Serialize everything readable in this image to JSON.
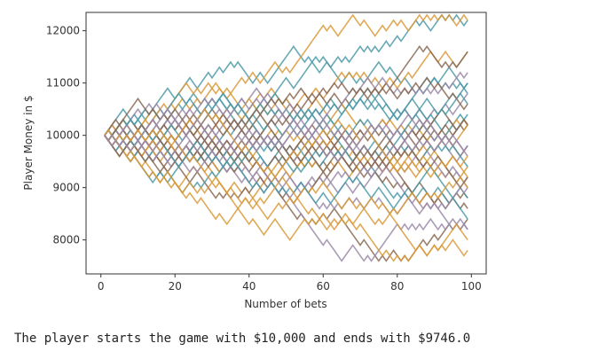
{
  "chart_data": {
    "type": "line",
    "title": "",
    "xlabel": "Number of bets",
    "ylabel": "Player Money in $",
    "xlim": [
      -4,
      104
    ],
    "ylim": [
      7350,
      12350
    ],
    "x_ticks": [
      0,
      20,
      40,
      60,
      80,
      100
    ],
    "y_ticks": [
      8000,
      9000,
      10000,
      11000,
      12000
    ],
    "grid": false,
    "legend": "none",
    "series_colors": [
      "#4c9aa8",
      "#d99a3a",
      "#8a6a55",
      "#9b8aa8"
    ],
    "start_value": 10000,
    "bet_size": 100,
    "bets_per_player": 98,
    "num_players": 40,
    "highest_reached": 12300,
    "lowest_reached": 7600
  },
  "output": {
    "text": "The player starts the game with $10,000 and ends with $9746.0"
  }
}
